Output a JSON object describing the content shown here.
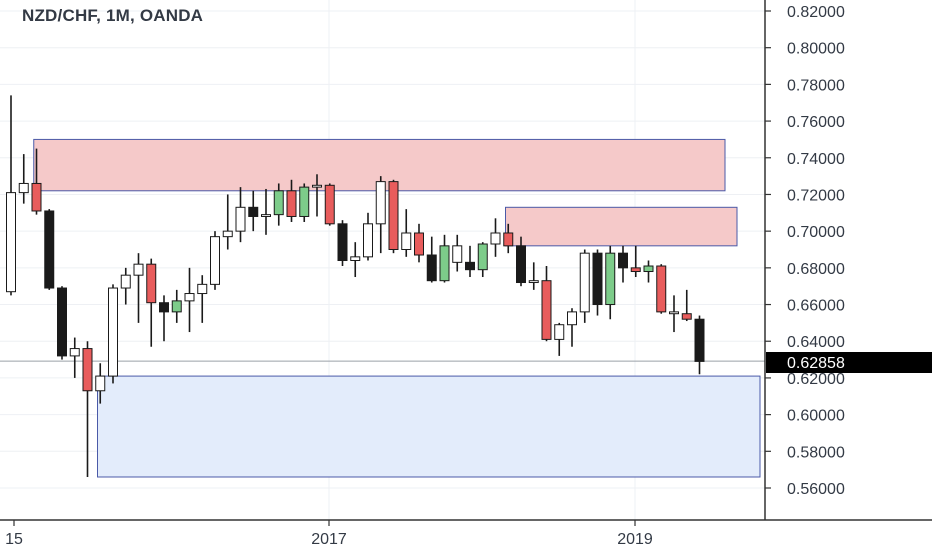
{
  "header": {
    "symbol_title": "NZD/CHF, 1M, OANDA"
  },
  "price_axis": {
    "ticks": [
      "0.82000",
      "0.80000",
      "0.78000",
      "0.76000",
      "0.74000",
      "0.72000",
      "0.70000",
      "0.68000",
      "0.66000",
      "0.64000",
      "0.62000",
      "0.60000",
      "0.58000",
      "0.56000"
    ],
    "current_price_label": "0.62858"
  },
  "time_axis": {
    "labels": [
      "15",
      "2017",
      "2019"
    ]
  },
  "colors": {
    "up_fill": "#ffffff",
    "up_green": "#7dcc8a",
    "down_fill": "#1a1a1a",
    "down_red": "#e85c5c",
    "wick": "#1a1a1a",
    "supply_zone": "#f5c9c9",
    "supply_border": "#4a5aa8",
    "demand_zone": "#e3ecfb",
    "demand_border": "#4a5aa8",
    "grid": "#eef0f4",
    "axis": "#333333",
    "price_badge": "#000000"
  },
  "chart_data": {
    "type": "candlestick",
    "title": "NZD/CHF, 1M, OANDA",
    "y_range": [
      0.5,
      0.835
    ],
    "x_labels": [
      {
        "text": "15",
        "index": 0
      },
      {
        "text": "2017",
        "index": 24
      },
      {
        "text": "2019",
        "index": 48
      }
    ],
    "current_price": 0.62858,
    "zones": [
      {
        "kind": "supply",
        "from_index": 1,
        "to_index": 55,
        "low": 0.722,
        "high": 0.75
      },
      {
        "kind": "supply",
        "from_index": 38,
        "to_index": 56,
        "low": 0.692,
        "high": 0.713
      },
      {
        "kind": "demand",
        "from_index": 6,
        "to_index": 58,
        "low": 0.566,
        "high": 0.621
      }
    ],
    "candles": [
      {
        "o": 0.667,
        "h": 0.774,
        "l": 0.665,
        "c": 0.721,
        "style": "white"
      },
      {
        "o": 0.721,
        "h": 0.742,
        "l": 0.715,
        "c": 0.726,
        "style": "white"
      },
      {
        "o": 0.726,
        "h": 0.745,
        "l": 0.709,
        "c": 0.711,
        "style": "red"
      },
      {
        "o": 0.711,
        "h": 0.712,
        "l": 0.668,
        "c": 0.669,
        "style": "black"
      },
      {
        "o": 0.669,
        "h": 0.67,
        "l": 0.63,
        "c": 0.632,
        "style": "black"
      },
      {
        "o": 0.632,
        "h": 0.642,
        "l": 0.62,
        "c": 0.636,
        "style": "white"
      },
      {
        "o": 0.636,
        "h": 0.64,
        "l": 0.566,
        "c": 0.613,
        "style": "red"
      },
      {
        "o": 0.613,
        "h": 0.628,
        "l": 0.606,
        "c": 0.621,
        "style": "white"
      },
      {
        "o": 0.621,
        "h": 0.671,
        "l": 0.617,
        "c": 0.669,
        "style": "white"
      },
      {
        "o": 0.669,
        "h": 0.68,
        "l": 0.66,
        "c": 0.676,
        "style": "white"
      },
      {
        "o": 0.676,
        "h": 0.688,
        "l": 0.65,
        "c": 0.682,
        "style": "white"
      },
      {
        "o": 0.682,
        "h": 0.685,
        "l": 0.637,
        "c": 0.661,
        "style": "red"
      },
      {
        "o": 0.661,
        "h": 0.665,
        "l": 0.64,
        "c": 0.656,
        "style": "black"
      },
      {
        "o": 0.656,
        "h": 0.668,
        "l": 0.65,
        "c": 0.662,
        "style": "green"
      },
      {
        "o": 0.662,
        "h": 0.68,
        "l": 0.645,
        "c": 0.666,
        "style": "white"
      },
      {
        "o": 0.666,
        "h": 0.676,
        "l": 0.65,
        "c": 0.671,
        "style": "white"
      },
      {
        "o": 0.671,
        "h": 0.7,
        "l": 0.668,
        "c": 0.697,
        "style": "white"
      },
      {
        "o": 0.697,
        "h": 0.72,
        "l": 0.69,
        "c": 0.7,
        "style": "white"
      },
      {
        "o": 0.7,
        "h": 0.724,
        "l": 0.694,
        "c": 0.713,
        "style": "white"
      },
      {
        "o": 0.713,
        "h": 0.722,
        "l": 0.7,
        "c": 0.708,
        "style": "black"
      },
      {
        "o": 0.708,
        "h": 0.723,
        "l": 0.698,
        "c": 0.709,
        "style": "white"
      },
      {
        "o": 0.709,
        "h": 0.726,
        "l": 0.703,
        "c": 0.722,
        "style": "green"
      },
      {
        "o": 0.722,
        "h": 0.728,
        "l": 0.705,
        "c": 0.708,
        "style": "red"
      },
      {
        "o": 0.708,
        "h": 0.726,
        "l": 0.705,
        "c": 0.724,
        "style": "green"
      },
      {
        "o": 0.724,
        "h": 0.731,
        "l": 0.708,
        "c": 0.725,
        "style": "white"
      },
      {
        "o": 0.725,
        "h": 0.726,
        "l": 0.703,
        "c": 0.704,
        "style": "red"
      },
      {
        "o": 0.704,
        "h": 0.706,
        "l": 0.681,
        "c": 0.684,
        "style": "black"
      },
      {
        "o": 0.684,
        "h": 0.694,
        "l": 0.675,
        "c": 0.686,
        "style": "white"
      },
      {
        "o": 0.686,
        "h": 0.71,
        "l": 0.684,
        "c": 0.704,
        "style": "white"
      },
      {
        "o": 0.704,
        "h": 0.73,
        "l": 0.688,
        "c": 0.727,
        "style": "white"
      },
      {
        "o": 0.727,
        "h": 0.728,
        "l": 0.688,
        "c": 0.69,
        "style": "red"
      },
      {
        "o": 0.69,
        "h": 0.712,
        "l": 0.686,
        "c": 0.699,
        "style": "white"
      },
      {
        "o": 0.699,
        "h": 0.704,
        "l": 0.683,
        "c": 0.687,
        "style": "red"
      },
      {
        "o": 0.687,
        "h": 0.697,
        "l": 0.672,
        "c": 0.673,
        "style": "black"
      },
      {
        "o": 0.673,
        "h": 0.698,
        "l": 0.672,
        "c": 0.692,
        "style": "green"
      },
      {
        "o": 0.692,
        "h": 0.698,
        "l": 0.678,
        "c": 0.683,
        "style": "white"
      },
      {
        "o": 0.683,
        "h": 0.692,
        "l": 0.675,
        "c": 0.679,
        "style": "black"
      },
      {
        "o": 0.679,
        "h": 0.694,
        "l": 0.675,
        "c": 0.693,
        "style": "green"
      },
      {
        "o": 0.693,
        "h": 0.707,
        "l": 0.686,
        "c": 0.699,
        "style": "white"
      },
      {
        "o": 0.699,
        "h": 0.704,
        "l": 0.688,
        "c": 0.692,
        "style": "red"
      },
      {
        "o": 0.692,
        "h": 0.697,
        "l": 0.67,
        "c": 0.672,
        "style": "black"
      },
      {
        "o": 0.672,
        "h": 0.683,
        "l": 0.668,
        "c": 0.673,
        "style": "white"
      },
      {
        "o": 0.673,
        "h": 0.681,
        "l": 0.64,
        "c": 0.641,
        "style": "red"
      },
      {
        "o": 0.641,
        "h": 0.65,
        "l": 0.632,
        "c": 0.649,
        "style": "white"
      },
      {
        "o": 0.649,
        "h": 0.658,
        "l": 0.637,
        "c": 0.656,
        "style": "white"
      },
      {
        "o": 0.656,
        "h": 0.69,
        "l": 0.65,
        "c": 0.688,
        "style": "white"
      },
      {
        "o": 0.688,
        "h": 0.69,
        "l": 0.654,
        "c": 0.66,
        "style": "black"
      },
      {
        "o": 0.66,
        "h": 0.692,
        "l": 0.652,
        "c": 0.688,
        "style": "green"
      },
      {
        "o": 0.688,
        "h": 0.692,
        "l": 0.672,
        "c": 0.68,
        "style": "black"
      },
      {
        "o": 0.68,
        "h": 0.692,
        "l": 0.675,
        "c": 0.678,
        "style": "red"
      },
      {
        "o": 0.678,
        "h": 0.684,
        "l": 0.672,
        "c": 0.681,
        "style": "green"
      },
      {
        "o": 0.681,
        "h": 0.682,
        "l": 0.655,
        "c": 0.656,
        "style": "red"
      },
      {
        "o": 0.656,
        "h": 0.665,
        "l": 0.645,
        "c": 0.655,
        "style": "white"
      },
      {
        "o": 0.655,
        "h": 0.668,
        "l": 0.651,
        "c": 0.652,
        "style": "red"
      },
      {
        "o": 0.652,
        "h": 0.654,
        "l": 0.622,
        "c": 0.629,
        "style": "black"
      }
    ]
  }
}
